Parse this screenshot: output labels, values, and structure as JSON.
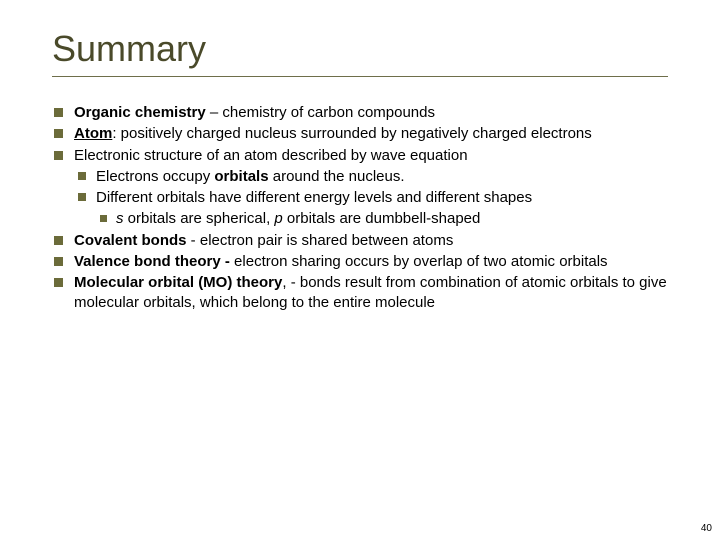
{
  "title": "Summary",
  "colors": {
    "title_color": "#4a4a2a",
    "divider_color": "#6e6e4a",
    "bullet_color": "#6b6b3a",
    "text_color": "#000000",
    "background": "#ffffff"
  },
  "typography": {
    "title_fontsize": 36,
    "body_fontsize": 15,
    "pagenum_fontsize": 10,
    "font_family": "Arial"
  },
  "page_number": "40",
  "bullets": {
    "b1_strong": "Organic chemistry",
    "b1_rest": " – chemistry of carbon compounds",
    "b2_strong": "Atom",
    "b2_rest": ": positively charged nucleus surrounded by negatively charged electrons",
    "b3": "Electronic structure of an atom described by wave equation",
    "b3a_pre": "Electrons occupy ",
    "b3a_strong": "orbitals",
    "b3a_post": " around the nucleus.",
    "b3b": "Different orbitals have different energy levels and different shapes",
    "b3b1_i1": "s",
    "b3b1_mid1": " orbitals are spherical,  ",
    "b3b1_i2": "p",
    "b3b1_mid2": " orbitals are dumbbell-shaped",
    "b4_strong": "Covalent bonds",
    "b4_rest": " - electron pair is shared between atoms",
    "b5_strong": "Valence bond theory - ",
    "b5_rest": "electron sharing occurs by overlap of two atomic orbitals",
    "b6_strong": "Molecular orbital (MO) theory",
    "b6_rest": ", - bonds result from combination of atomic orbitals to give molecular orbitals, which belong to the entire molecule"
  }
}
